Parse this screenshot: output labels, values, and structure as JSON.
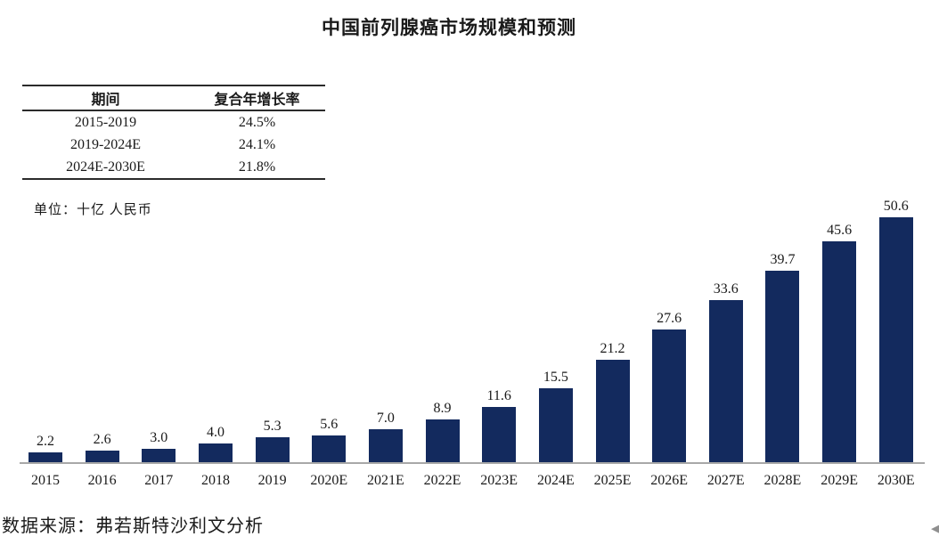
{
  "title": "中国前列腺癌市场规模和预测",
  "cagr_table": {
    "headers": [
      "期间",
      "复合年增长率"
    ],
    "rows": [
      {
        "period": "2015-2019",
        "cagr": "24.5%"
      },
      {
        "period": "2019-2024E",
        "cagr": "24.1%"
      },
      {
        "period": "2024E-2030E",
        "cagr": "21.8%"
      }
    ]
  },
  "unit_note": "单位：十亿 人民币",
  "source_note": "数据来源：弗若斯特沙利文分析",
  "icons": {
    "corner_arrow": "◀"
  },
  "colors": {
    "bar": "#132A5E",
    "axis": "#A8A8A8",
    "text": "#1A1A1A"
  },
  "chart_data": {
    "type": "bar",
    "title": "中国前列腺癌市场规模和预测",
    "unit": "十亿 人民币",
    "categories": [
      "2015",
      "2016",
      "2017",
      "2018",
      "2019",
      "2020E",
      "2021E",
      "2022E",
      "2023E",
      "2024E",
      "2025E",
      "2026E",
      "2027E",
      "2028E",
      "2029E",
      "2030E"
    ],
    "values": [
      2.2,
      2.6,
      3.0,
      4.0,
      5.3,
      5.6,
      7.0,
      8.9,
      11.6,
      15.5,
      21.2,
      27.6,
      33.6,
      39.7,
      45.6,
      50.6
    ],
    "labels": [
      "2.2",
      "2.6",
      "3.0",
      "4.0",
      "5.3",
      "5.6",
      "7.0",
      "8.9",
      "11.6",
      "15.5",
      "21.2",
      "27.6",
      "33.6",
      "39.7",
      "45.6",
      "50.6"
    ],
    "xlabel": "",
    "ylabel": "",
    "ylim": [
      0,
      55
    ],
    "grid": false,
    "legend": false,
    "data_labels": true,
    "bar_color": "#132A5E"
  }
}
